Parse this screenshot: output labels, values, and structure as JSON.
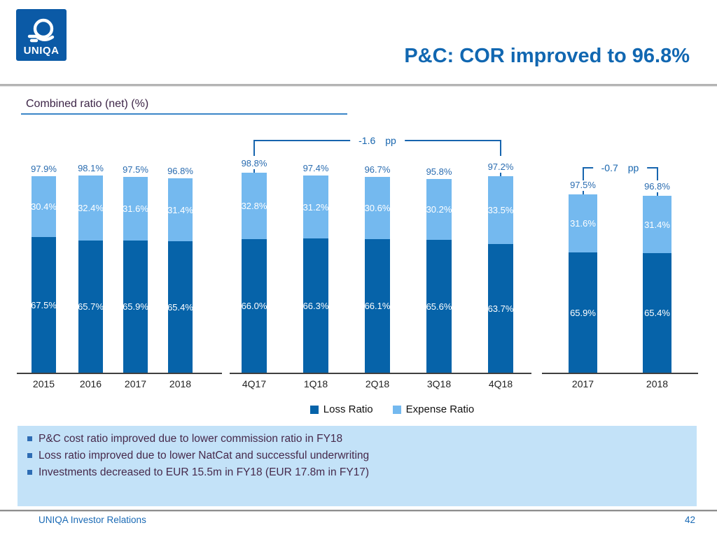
{
  "header": {
    "title": "P&C: COR improved to 96.8%",
    "logo_text": "UNIQA"
  },
  "section": {
    "label": "Combined ratio (net) (%)"
  },
  "chart_data": {
    "type": "bar",
    "stacked": true,
    "unit": "%",
    "title": "Combined ratio (net) (%)",
    "ylim": [
      0,
      100
    ],
    "grid": false,
    "legend_position": "bottom",
    "series_names": [
      "Loss Ratio",
      "Expense Ratio"
    ],
    "groups": [
      {
        "categories": [
          "2015",
          "2016",
          "2017",
          "2018"
        ],
        "series": [
          {
            "name": "Loss Ratio",
            "values": [
              67.5,
              65.7,
              65.9,
              65.4
            ]
          },
          {
            "name": "Expense Ratio",
            "values": [
              30.4,
              32.4,
              31.6,
              31.4
            ]
          }
        ],
        "totals": [
          "97.9%",
          "98.1%",
          "97.5%",
          "96.8%"
        ],
        "annotation": null
      },
      {
        "categories": [
          "4Q17",
          "1Q18",
          "2Q18",
          "3Q18",
          "4Q18"
        ],
        "series": [
          {
            "name": "Loss Ratio",
            "values": [
              66.0,
              66.3,
              66.1,
              65.6,
              63.7
            ]
          },
          {
            "name": "Expense Ratio",
            "values": [
              32.8,
              31.2,
              30.6,
              30.2,
              33.5
            ]
          }
        ],
        "totals": [
          "98.8%",
          "97.4%",
          "96.7%",
          "95.8%",
          "97.2%"
        ],
        "annotation": {
          "value": "-1.6",
          "unit": "pp"
        }
      },
      {
        "categories": [
          "2017",
          "2018"
        ],
        "series": [
          {
            "name": "Loss Ratio",
            "values": [
              65.9,
              65.4
            ]
          },
          {
            "name": "Expense Ratio",
            "values": [
              31.6,
              31.4
            ]
          }
        ],
        "totals": [
          "97.5%",
          "96.8%"
        ],
        "annotation": {
          "value": "-0.7",
          "unit": "pp"
        }
      }
    ]
  },
  "legend": [
    {
      "label": "Loss Ratio",
      "color": "#0663a9"
    },
    {
      "label": "Expense Ratio",
      "color": "#74b9ef"
    }
  ],
  "bullets": [
    "P&C cost ratio improved due to lower commission ratio in FY18",
    "Loss ratio improved due to lower NatCat and successful underwriting",
    "Investments decreased to EUR 15.5m in FY18 (EUR 17.8m in FY17)"
  ],
  "footer": {
    "left": "UNIQA Investor Relations",
    "page": "42"
  },
  "colors": {
    "loss_ratio": "#0663a9",
    "expense_ratio": "#74b9ef",
    "accent_blue": "#1167b1",
    "bracket_blue": "#1765ae",
    "box_background": "#c3e2f8",
    "bullet_text": "#46294b",
    "logo_background": "#0b5aa6"
  }
}
